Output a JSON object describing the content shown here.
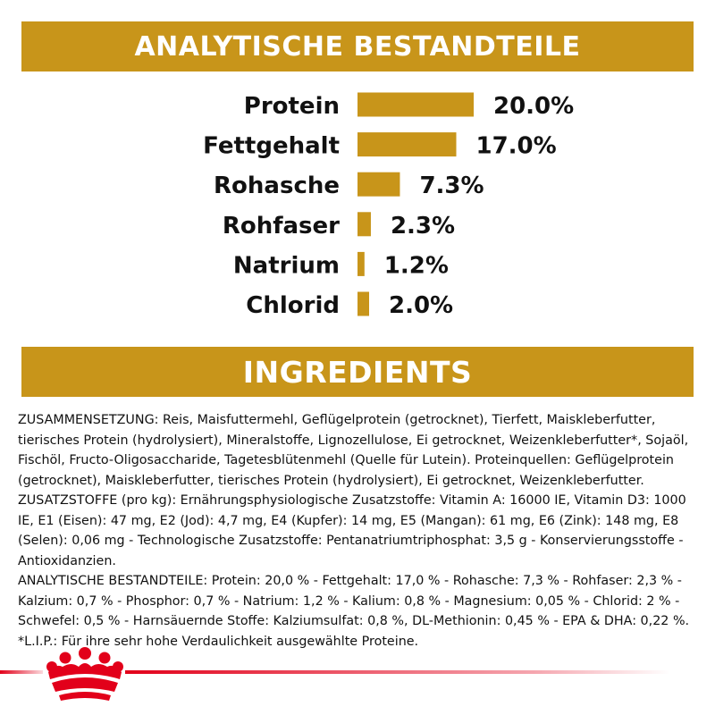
{
  "analytics_banner": {
    "title": "ANALYTISCHE BESTANDTEILE"
  },
  "ingredients_banner": {
    "title": "INGREDIENTS"
  },
  "colors": {
    "accent": "#C8951A",
    "brand_red": "#E2001A",
    "text": "#111111"
  },
  "chart_data": {
    "type": "bar",
    "orientation": "horizontal",
    "categories": [
      "Protein",
      "Fettgehalt",
      "Rohasche",
      "Rohfaser",
      "Natrium",
      "Chlorid"
    ],
    "values": [
      20.0,
      17.0,
      7.3,
      2.3,
      1.2,
      2.0
    ],
    "value_labels": [
      "20.0%",
      "17.0%",
      "7.3%",
      "2.3%",
      "1.2%",
      "2.0%"
    ],
    "title": "",
    "xlabel": "",
    "ylabel": "",
    "grid": false,
    "legend": false
  },
  "ingredients": {
    "paragraphs": [
      "ZUSAMMENSETZUNG: Reis, Maisfuttermehl, Geflügelprotein (getrocknet), Tierfett, Maiskleberfutter, tierisches Protein (hydrolysiert), Mineralstoffe, Lignozellulose, Ei getrocknet, Weizenkleberfutter*, Sojaöl, Fischöl, Fructo-Oligosaccharide, Tagetesblütenmehl (Quelle für Lutein). Proteinquellen: Geflügelprotein (getrocknet), Maiskleberfutter, tierisches Protein (hydrolysiert), Ei getrocknet, Weizenkleberfutter.",
      "ZUSATZSTOFFE (pro kg): Ernährungsphysiologische Zusatzstoffe: Vitamin A: 16000 IE, Vitamin D3: 1000 IE, E1 (Eisen): 47 mg, E2 (Jod): 4,7 mg, E4 (Kupfer): 14 mg, E5 (Mangan): 61 mg, E6 (Zink): 148 mg, E8 (Selen): 0,06 mg - Technologische Zusatzstoffe: Pentanatriumtriphosphat: 3,5 g - Konservierungsstoffe - Antioxidanzien.",
      "ANALYTISCHE BESTANDTEILE: Protein: 20,0 % - Fettgehalt: 17,0 % - Rohasche: 7,3 % - Rohfaser: 2,3 % - Kalzium: 0,7 % - Phosphor: 0,7 % - Natrium: 1,2 % - Kalium: 0,8 % - Magnesium: 0,05 % - Chlorid: 2 % - Schwefel: 0,5 % - Harnsäuernde Stoffe: Kalziumsulfat: 0,8 %, DL-Methionin: 0,45 % - EPA & DHA: 0,22 %.",
      "*L.I.P.: Für ihre sehr hohe Verdaulichkeit ausgewählte Proteine."
    ]
  },
  "footer": {
    "logo_icon": "crown-icon"
  }
}
